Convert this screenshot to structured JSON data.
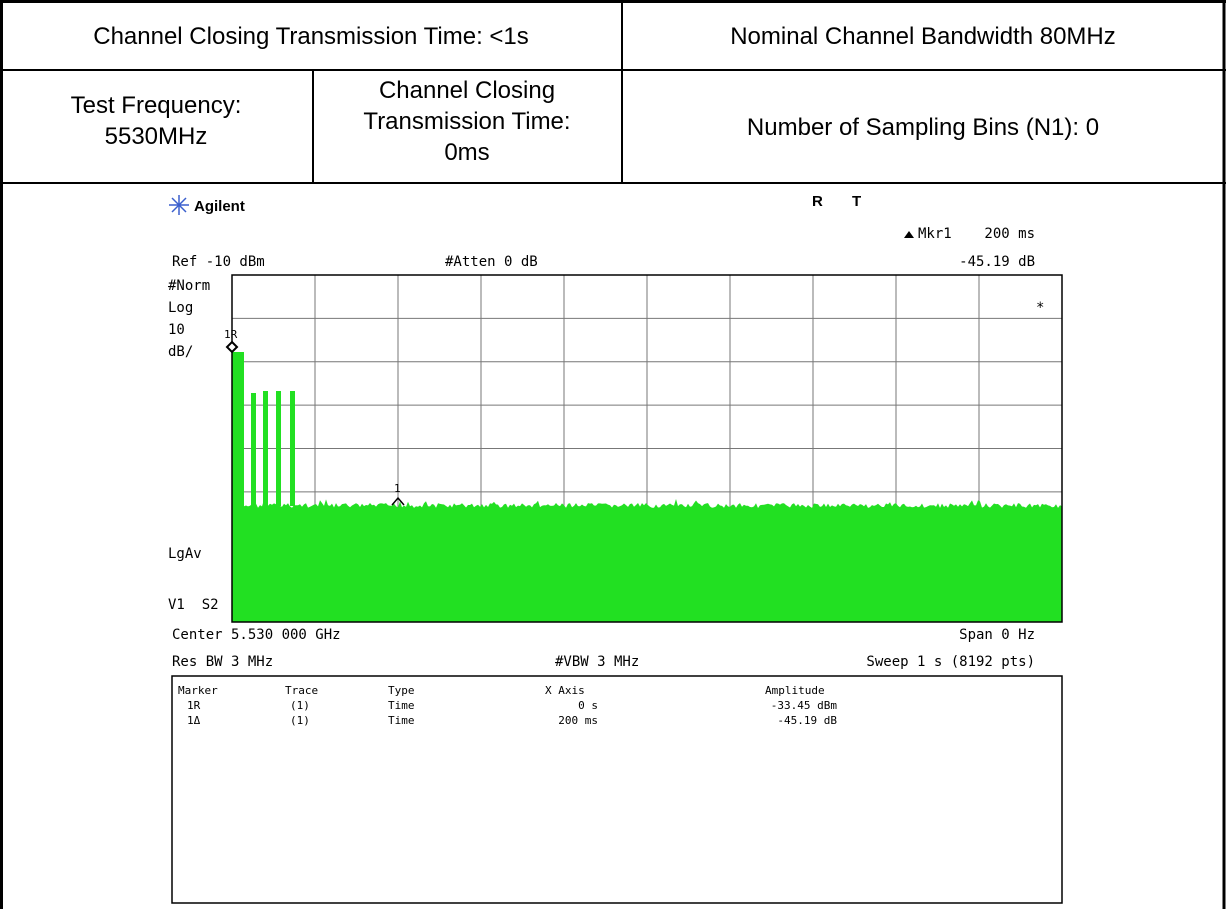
{
  "header": {
    "row1": [
      "Channel Closing Transmission Time: <1s",
      "Nominal Channel Bandwidth 80MHz"
    ],
    "row2": [
      [
        "Test Frequency:",
        "5530MHz"
      ],
      [
        "Channel Closing",
        "Transmission Time:",
        "0ms"
      ],
      [
        "Number of Sampling Bins (N1): 0"
      ]
    ]
  },
  "analyzer": {
    "brand": "Agilent",
    "status": [
      "R",
      "T"
    ],
    "marker_readout": [
      "Mkr1",
      "200 ms"
    ],
    "ref": "Ref -10 dBm",
    "atten": "#Atten 0 dB",
    "marker_value": "-45.19 dB",
    "left_labels": [
      "#Norm",
      "Log",
      "10",
      "dB/"
    ],
    "detector": "LgAv",
    "trace_state": "V1  S2",
    "marker_labels": [
      "1R",
      "1"
    ],
    "star": "*",
    "center": "Center 5.530 000 GHz",
    "span": "Span 0 Hz",
    "res_bw": "Res BW 3 MHz",
    "vbw": "#VBW 3 MHz",
    "sweep": "Sweep 1 s (8192 pts)",
    "marker_table": {
      "headers": [
        "Marker",
        "Trace",
        "Type",
        "X Axis",
        "Amplitude"
      ],
      "rows": [
        [
          "1R",
          "(1)",
          "Time",
          "0 s",
          "-33.45 dBm"
        ],
        [
          "1Δ",
          "(1)",
          "Time",
          "200 ms",
          "-45.19 dB"
        ]
      ]
    }
  }
}
